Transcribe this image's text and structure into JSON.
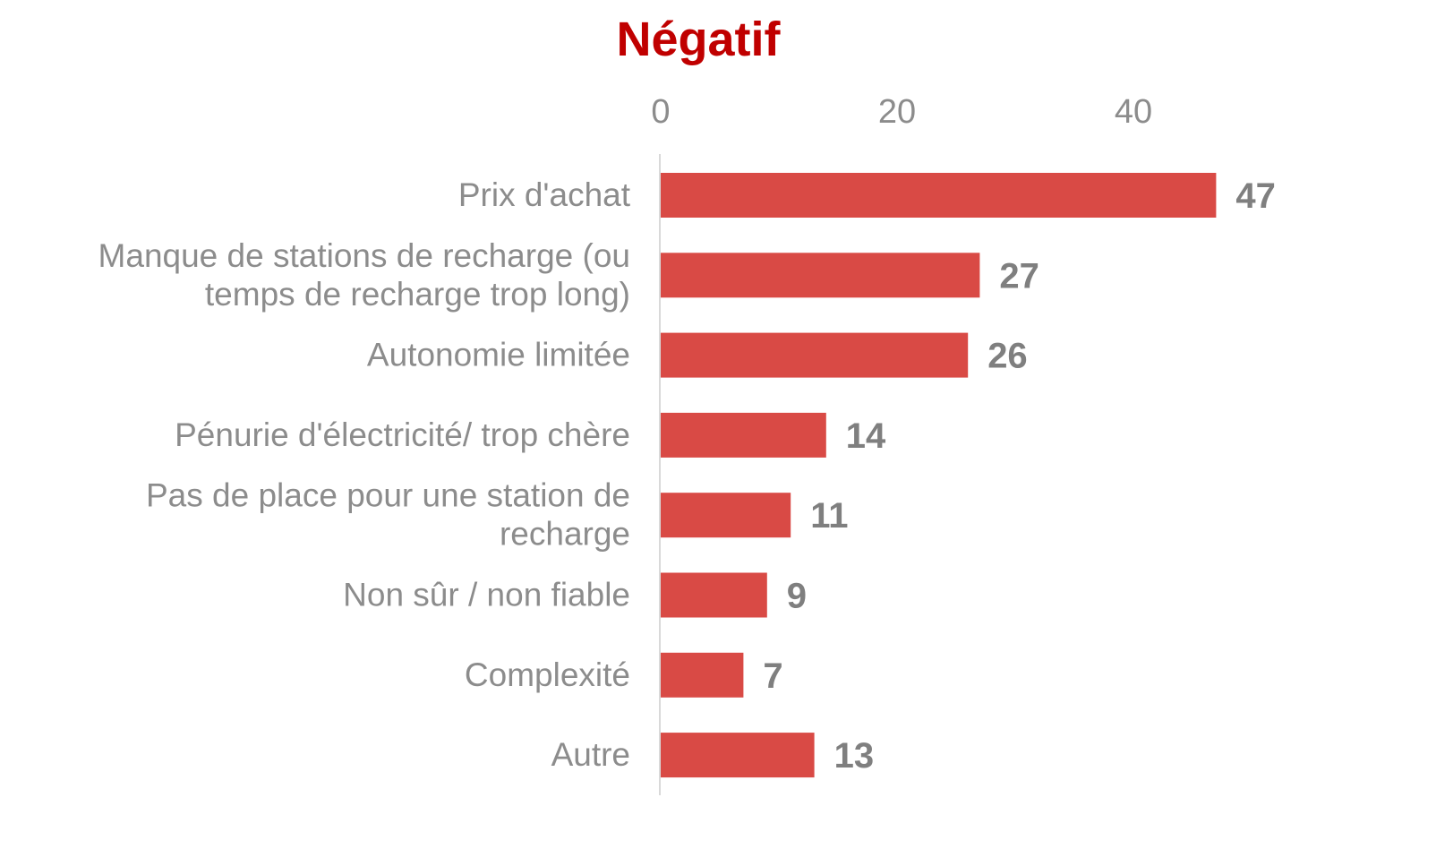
{
  "colors": {
    "title": "#c00000",
    "bar": "#d94a45",
    "axis": "#d9d9d9",
    "text": "#8c8c8c",
    "value": "#7f7f7f"
  },
  "chart_data": {
    "type": "bar",
    "orientation": "horizontal",
    "title": "Négatif",
    "categories": [
      [
        "Prix d'achat"
      ],
      [
        "Manque de stations de recharge (ou",
        "temps de recharge trop long)"
      ],
      [
        "Autonomie limitée"
      ],
      [
        "Pénurie d'électricité/ trop chère"
      ],
      [
        "Pas de place pour une station de",
        "recharge"
      ],
      [
        "Non sûr / non fiable"
      ],
      [
        "Complexité"
      ],
      [
        "Autre"
      ]
    ],
    "values": [
      47,
      27,
      26,
      14,
      11,
      9,
      7,
      13
    ],
    "xlim": [
      0,
      50
    ],
    "ticks": [
      0,
      20,
      40
    ],
    "tick_labels": [
      "0",
      "20",
      "40"
    ],
    "axis_position": "top",
    "grid": false,
    "legend": "none"
  }
}
